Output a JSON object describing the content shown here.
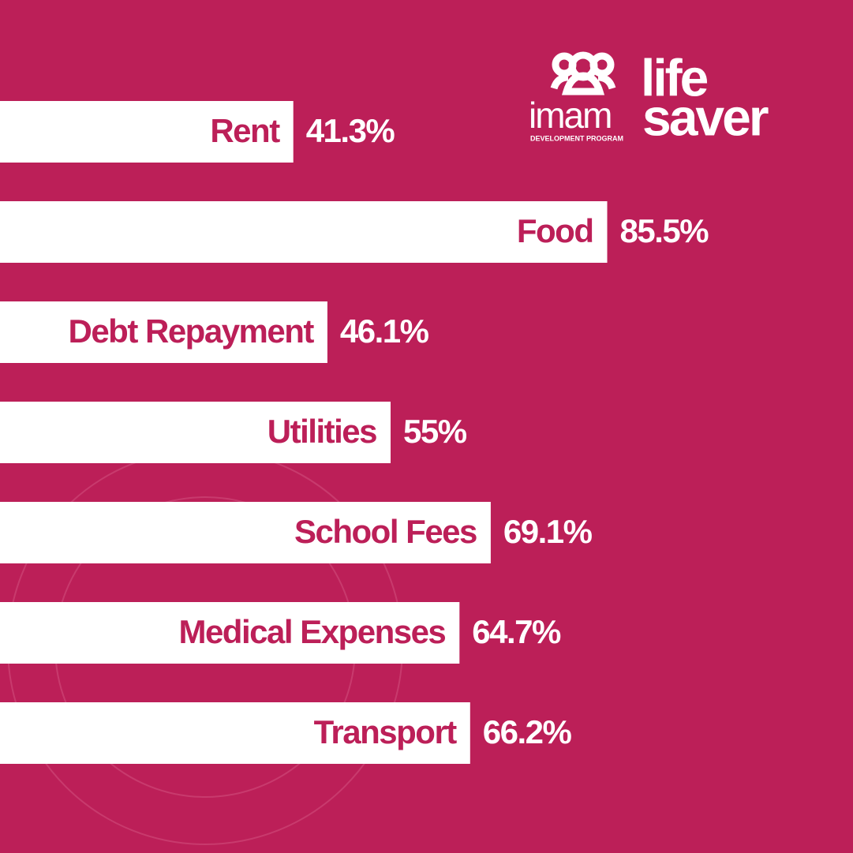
{
  "chart_data": {
    "type": "bar",
    "orientation": "horizontal",
    "categories": [
      "Rent",
      "Food",
      "Debt Repayment",
      "Utilities",
      "School Fees",
      "Medical Expenses",
      "Transport"
    ],
    "values": [
      41.3,
      85.5,
      46.1,
      55,
      69.1,
      64.7,
      66.2
    ],
    "value_labels": [
      "41.3%",
      "85.5%",
      "46.1%",
      "55%",
      "69.1%",
      "64.7%",
      "66.2%"
    ],
    "xlim": [
      0,
      100
    ],
    "color": "#ffffff",
    "label_color": "#bc1f58"
  },
  "logo": {
    "brand": "imam",
    "tagline": "DEVELOPMENT PROGRAM",
    "line1": "life",
    "line2": "saver"
  }
}
